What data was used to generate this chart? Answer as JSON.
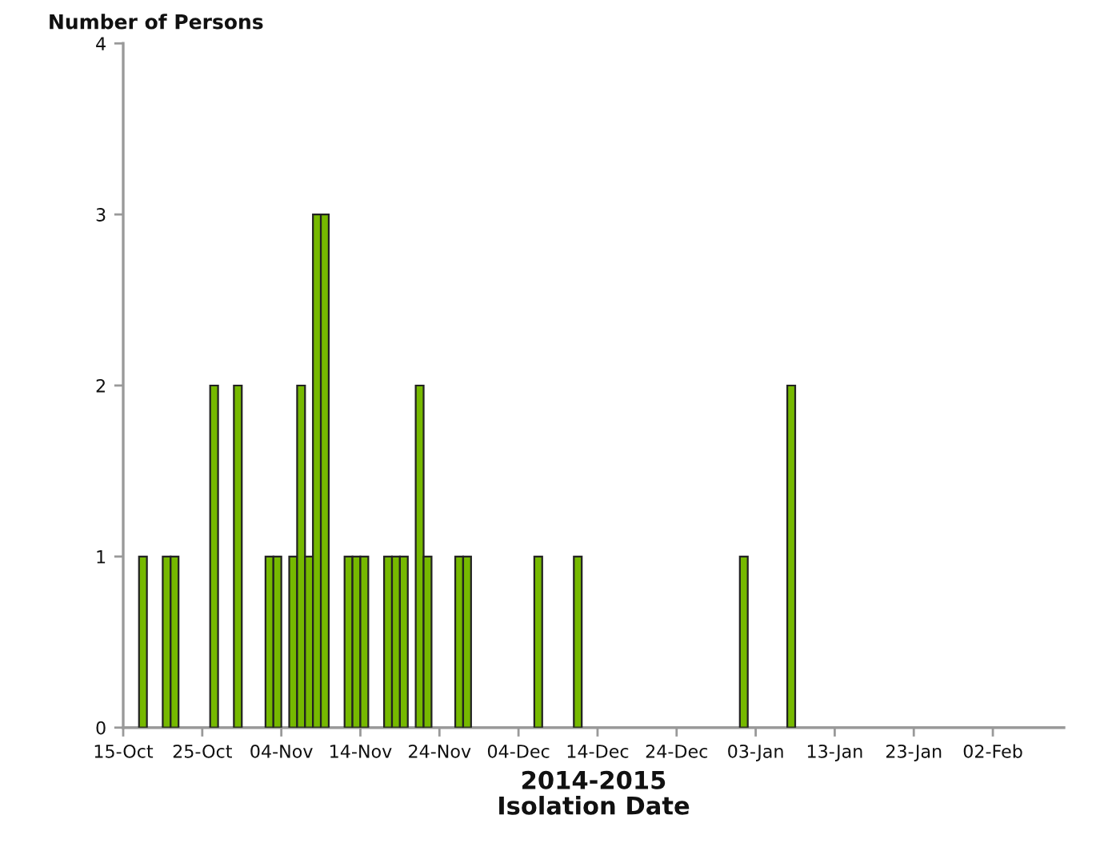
{
  "chart_data": {
    "type": "bar",
    "ylabel": "Number of Persons",
    "xlabel": "2014-2015\nIsolation Date",
    "x": [
      "2014-10-17",
      "2014-10-20",
      "2014-10-21",
      "2014-10-26",
      "2014-10-29",
      "2014-11-02",
      "2014-11-03",
      "2014-11-05",
      "2014-11-06",
      "2014-11-07",
      "2014-11-08",
      "2014-11-09",
      "2014-11-12",
      "2014-11-13",
      "2014-11-14",
      "2014-11-17",
      "2014-11-18",
      "2014-11-19",
      "2014-11-21",
      "2014-11-22",
      "2014-11-26",
      "2014-11-27",
      "2014-12-06",
      "2014-12-11",
      "2015-01-01",
      "2015-01-07"
    ],
    "values": [
      1,
      1,
      1,
      2,
      2,
      1,
      1,
      1,
      2,
      1,
      3,
      3,
      1,
      1,
      1,
      1,
      1,
      1,
      2,
      1,
      1,
      1,
      1,
      1,
      1,
      2
    ],
    "color": "#76b900",
    "xlim": [
      "2014-10-15",
      "2015-02-11"
    ],
    "xticks": [
      {
        "value": "2014-10-15",
        "label": "15-Oct"
      },
      {
        "value": "2014-10-25",
        "label": "25-Oct"
      },
      {
        "value": "2014-11-04",
        "label": "04-Nov"
      },
      {
        "value": "2014-11-14",
        "label": "14-Nov"
      },
      {
        "value": "2014-11-24",
        "label": "24-Nov"
      },
      {
        "value": "2014-12-04",
        "label": "04-Dec"
      },
      {
        "value": "2014-12-14",
        "label": "14-Dec"
      },
      {
        "value": "2014-12-24",
        "label": "24-Dec"
      },
      {
        "value": "2015-01-03",
        "label": "03-Jan"
      },
      {
        "value": "2015-01-13",
        "label": "13-Jan"
      },
      {
        "value": "2015-01-23",
        "label": "23-Jan"
      },
      {
        "value": "2015-02-02",
        "label": "02-Feb"
      }
    ],
    "ylim": [
      0,
      4
    ],
    "yticks": [
      0,
      1,
      2,
      3,
      4
    ]
  }
}
